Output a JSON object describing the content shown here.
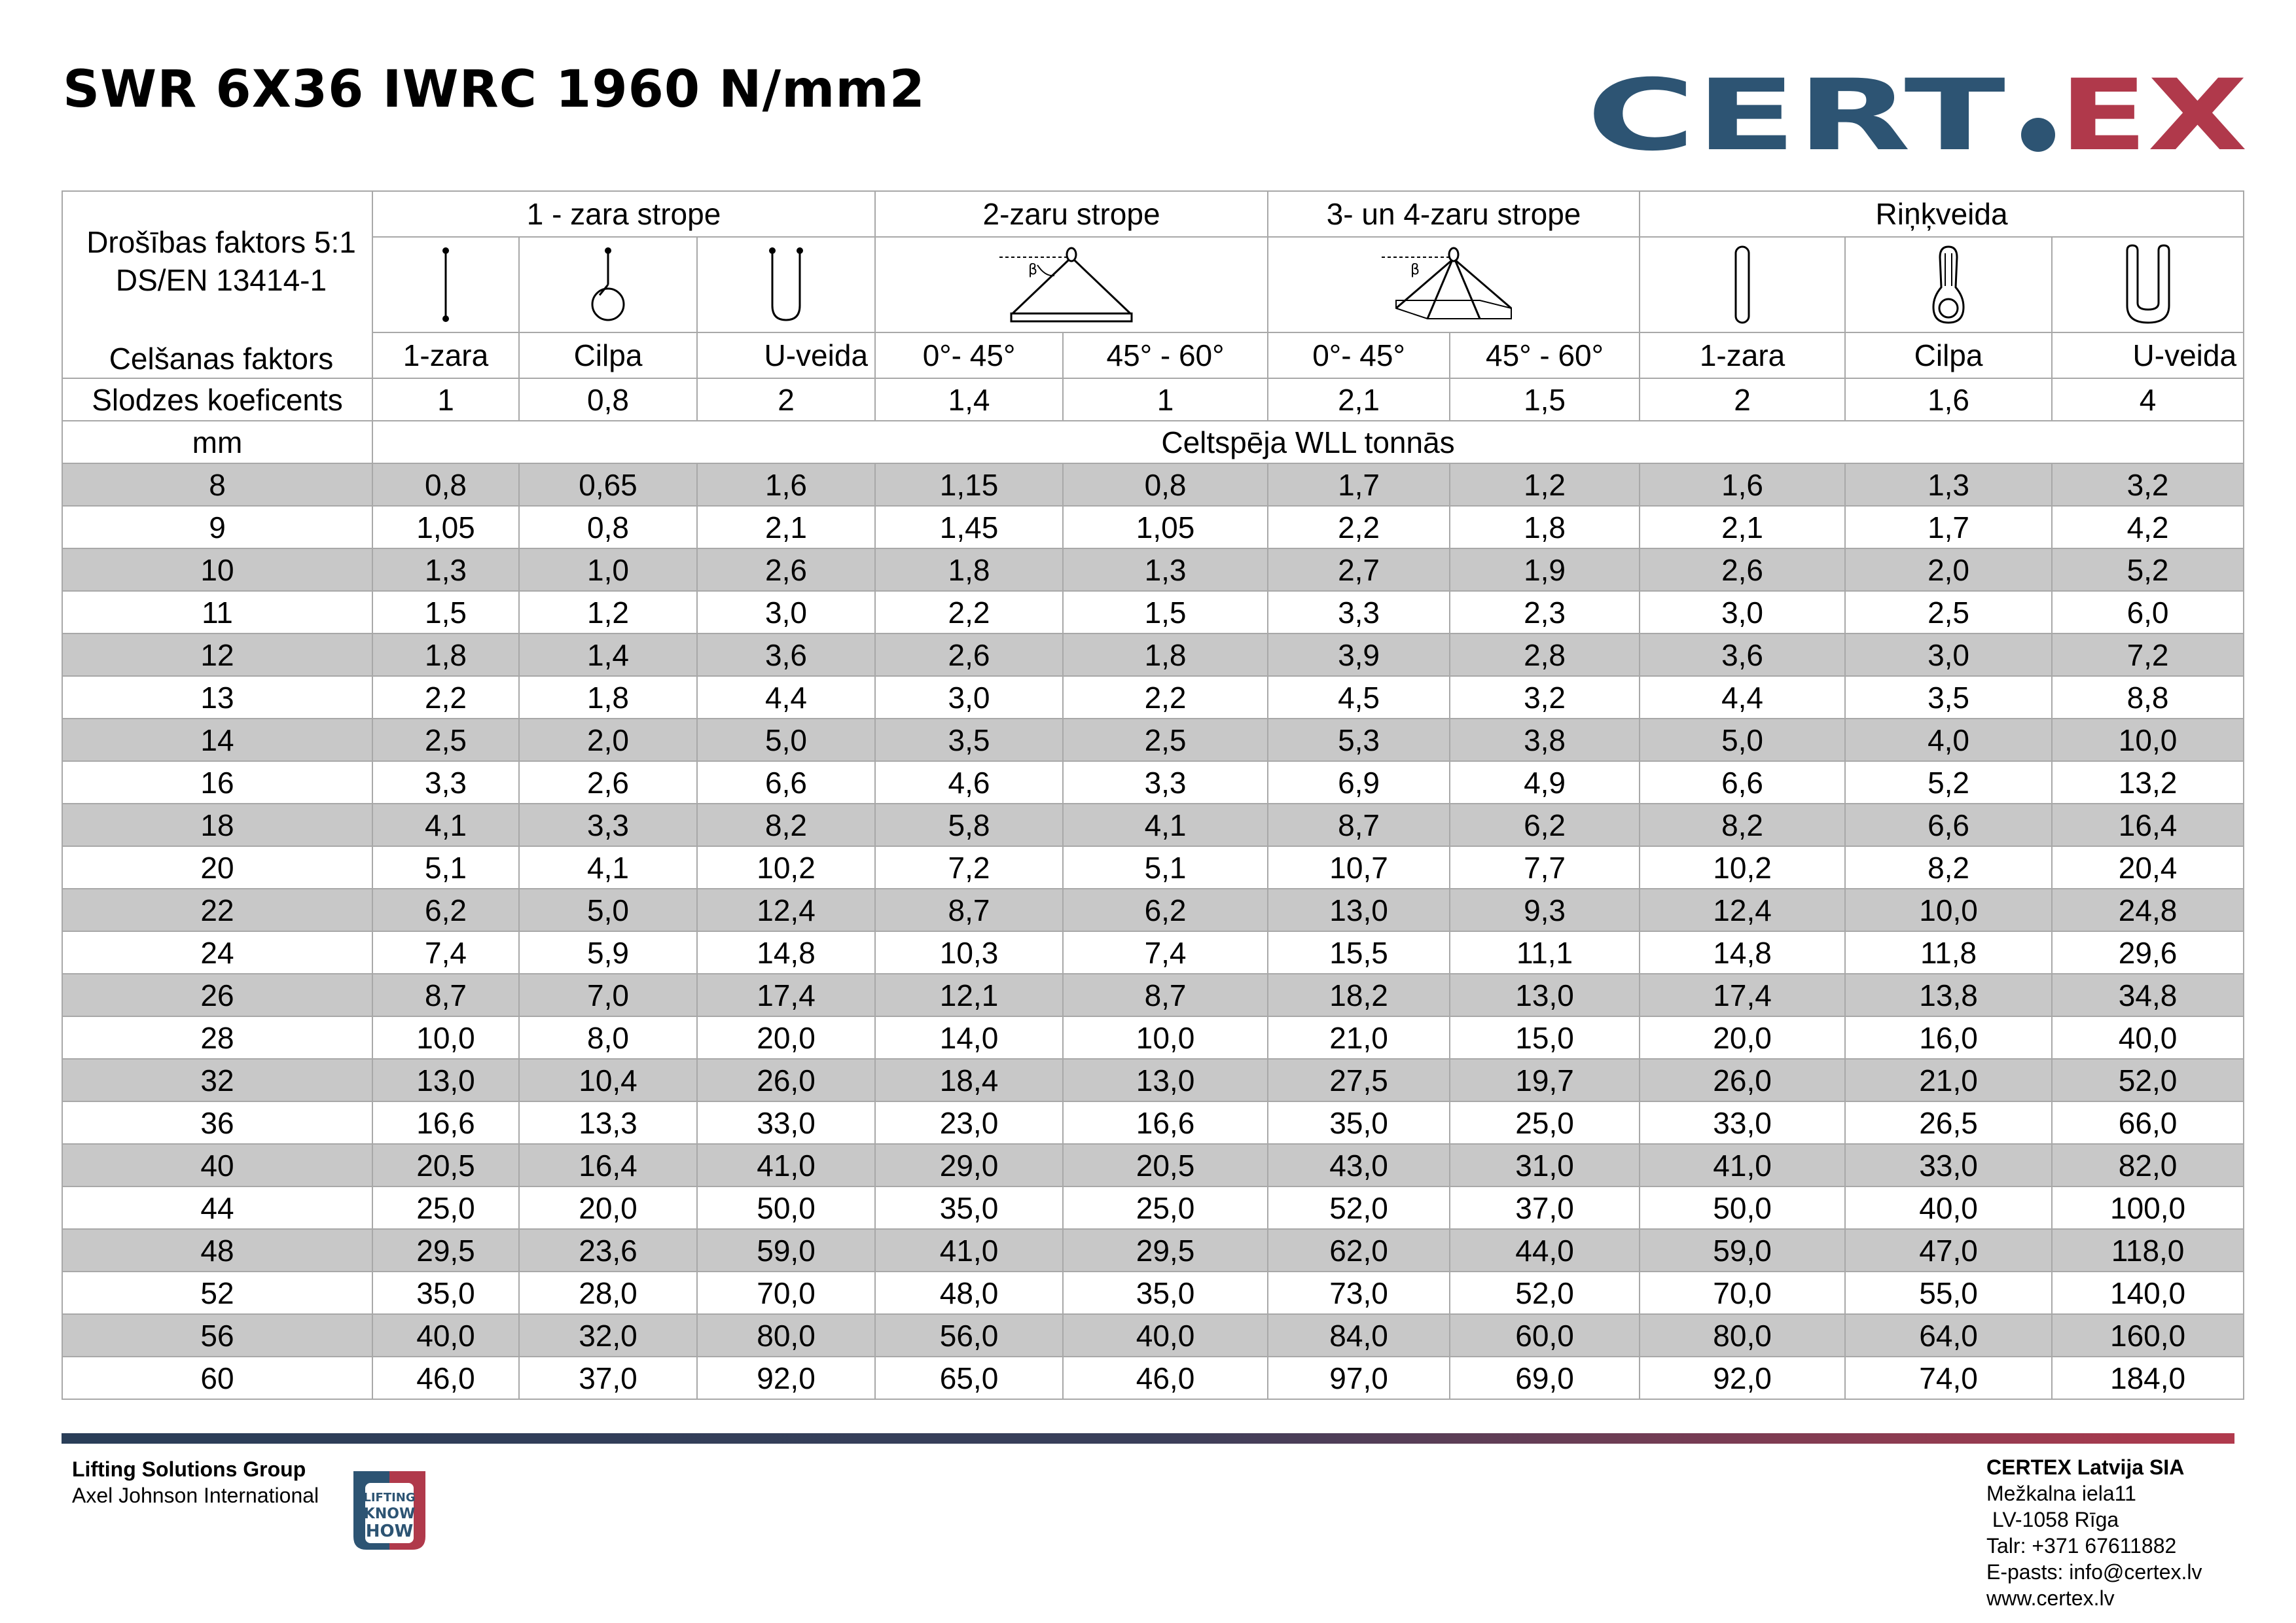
{
  "title": "SWR 6X36 IWRC 1960 N/mm2",
  "logo_text": "CERTEX",
  "colors": {
    "brand_blue": "#2d5473",
    "brand_red": "#b0394b",
    "row_shade": "#c8c8c8"
  },
  "header": {
    "safety_factor": "Drošības faktors 5:1",
    "standard": "DS/EN 13414-1",
    "lifting_factor_label": "Celšanas faktors",
    "load_coef_label": "Slodzes koeficents",
    "mm_label": "mm",
    "wll_label": "Celtspēja WLL tonnās",
    "groups": [
      "1 - zara strope",
      "2-zaru strope",
      "3- un 4-zaru strope",
      "Riņķveida"
    ],
    "sub": [
      "1-zara",
      "Cilpa",
      "U-veida",
      "0°- 45°",
      "45° - 60°",
      "0°- 45°",
      "45° - 60°",
      "1-zara",
      "Cilpa",
      "U-veida"
    ],
    "coefficients": [
      "1",
      "0,8",
      "2",
      "1,4",
      "1",
      "2,1",
      "1,5",
      "2",
      "1,6",
      "4"
    ],
    "icon_names": [
      "single-leg-sling-icon",
      "loop-sling-icon",
      "u-sling-icon",
      "two-leg-sling-icon",
      "four-leg-sling-icon",
      "endless-sling-icon",
      "endless-loop-icon",
      "endless-u-icon"
    ],
    "beta": "β"
  },
  "rows": [
    [
      "8",
      "0,8",
      "0,65",
      "1,6",
      "1,15",
      "0,8",
      "1,7",
      "1,2",
      "1,6",
      "1,3",
      "3,2"
    ],
    [
      "9",
      "1,05",
      "0,8",
      "2,1",
      "1,45",
      "1,05",
      "2,2",
      "1,8",
      "2,1",
      "1,7",
      "4,2"
    ],
    [
      "10",
      "1,3",
      "1,0",
      "2,6",
      "1,8",
      "1,3",
      "2,7",
      "1,9",
      "2,6",
      "2,0",
      "5,2"
    ],
    [
      "11",
      "1,5",
      "1,2",
      "3,0",
      "2,2",
      "1,5",
      "3,3",
      "2,3",
      "3,0",
      "2,5",
      "6,0"
    ],
    [
      "12",
      "1,8",
      "1,4",
      "3,6",
      "2,6",
      "1,8",
      "3,9",
      "2,8",
      "3,6",
      "3,0",
      "7,2"
    ],
    [
      "13",
      "2,2",
      "1,8",
      "4,4",
      "3,0",
      "2,2",
      "4,5",
      "3,2",
      "4,4",
      "3,5",
      "8,8"
    ],
    [
      "14",
      "2,5",
      "2,0",
      "5,0",
      "3,5",
      "2,5",
      "5,3",
      "3,8",
      "5,0",
      "4,0",
      "10,0"
    ],
    [
      "16",
      "3,3",
      "2,6",
      "6,6",
      "4,6",
      "3,3",
      "6,9",
      "4,9",
      "6,6",
      "5,2",
      "13,2"
    ],
    [
      "18",
      "4,1",
      "3,3",
      "8,2",
      "5,8",
      "4,1",
      "8,7",
      "6,2",
      "8,2",
      "6,6",
      "16,4"
    ],
    [
      "20",
      "5,1",
      "4,1",
      "10,2",
      "7,2",
      "5,1",
      "10,7",
      "7,7",
      "10,2",
      "8,2",
      "20,4"
    ],
    [
      "22",
      "6,2",
      "5,0",
      "12,4",
      "8,7",
      "6,2",
      "13,0",
      "9,3",
      "12,4",
      "10,0",
      "24,8"
    ],
    [
      "24",
      "7,4",
      "5,9",
      "14,8",
      "10,3",
      "7,4",
      "15,5",
      "11,1",
      "14,8",
      "11,8",
      "29,6"
    ],
    [
      "26",
      "8,7",
      "7,0",
      "17,4",
      "12,1",
      "8,7",
      "18,2",
      "13,0",
      "17,4",
      "13,8",
      "34,8"
    ],
    [
      "28",
      "10,0",
      "8,0",
      "20,0",
      "14,0",
      "10,0",
      "21,0",
      "15,0",
      "20,0",
      "16,0",
      "40,0"
    ],
    [
      "32",
      "13,0",
      "10,4",
      "26,0",
      "18,4",
      "13,0",
      "27,5",
      "19,7",
      "26,0",
      "21,0",
      "52,0"
    ],
    [
      "36",
      "16,6",
      "13,3",
      "33,0",
      "23,0",
      "16,6",
      "35,0",
      "25,0",
      "33,0",
      "26,5",
      "66,0"
    ],
    [
      "40",
      "20,5",
      "16,4",
      "41,0",
      "29,0",
      "20,5",
      "43,0",
      "31,0",
      "41,0",
      "33,0",
      "82,0"
    ],
    [
      "44",
      "25,0",
      "20,0",
      "50,0",
      "35,0",
      "25,0",
      "52,0",
      "37,0",
      "50,0",
      "40,0",
      "100,0"
    ],
    [
      "48",
      "29,5",
      "23,6",
      "59,0",
      "41,0",
      "29,5",
      "62,0",
      "44,0",
      "59,0",
      "47,0",
      "118,0"
    ],
    [
      "52",
      "35,0",
      "28,0",
      "70,0",
      "48,0",
      "35,0",
      "73,0",
      "52,0",
      "70,0",
      "55,0",
      "140,0"
    ],
    [
      "56",
      "40,0",
      "32,0",
      "80,0",
      "56,0",
      "40,0",
      "84,0",
      "60,0",
      "80,0",
      "64,0",
      "160,0"
    ],
    [
      "60",
      "46,0",
      "37,0",
      "92,0",
      "65,0",
      "46,0",
      "97,0",
      "69,0",
      "92,0",
      "74,0",
      "184,0"
    ]
  ],
  "footer": {
    "group": "Lifting Solutions Group",
    "parent": "Axel Johnson International",
    "badge_lines": [
      "LIFTING",
      "KNOW",
      "HOW"
    ],
    "company": "CERTEX Latvija SIA",
    "address1": "Mežkalna iela11",
    "address2": " LV-1058 Rīga",
    "phone": "Talr: +371 67611882",
    "email": "E-pasts: info@certex.lv",
    "web": "www.certex.lv"
  }
}
